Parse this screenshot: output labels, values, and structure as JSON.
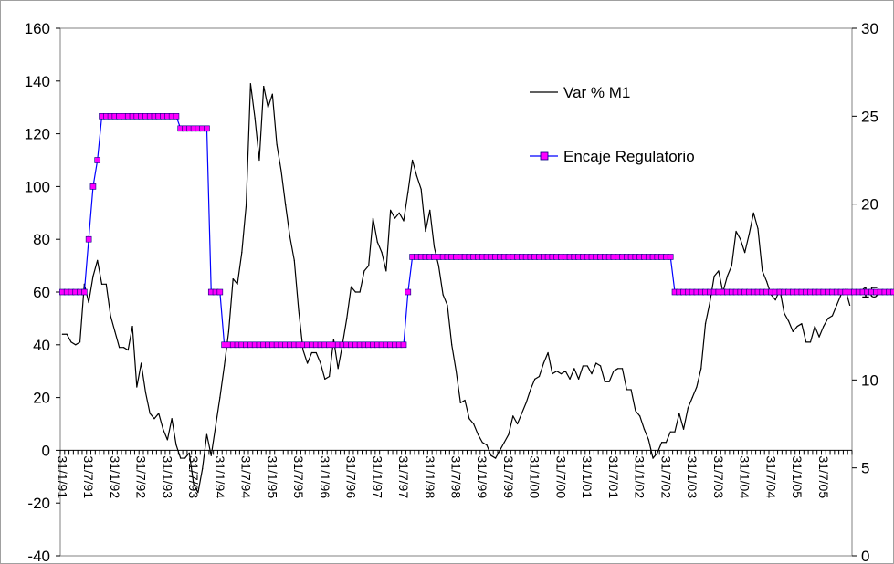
{
  "chart_data": {
    "type": "line",
    "title": "",
    "xlabel": "",
    "ylabel": "",
    "grid": false,
    "legend_position": "top-right",
    "x_ticks": [
      "31/1/91",
      "31/7/91",
      "31/1/92",
      "31/7/92",
      "31/1/93",
      "31/7/93",
      "31/1/94",
      "31/7/94",
      "31/1/95",
      "31/7/95",
      "31/1/96",
      "31/7/96",
      "31/1/97",
      "31/7/97",
      "31/1/98",
      "31/7/98",
      "31/1/99",
      "31/7/99",
      "31/1/00",
      "31/7/00",
      "31/1/01",
      "31/7/01",
      "31/1/02",
      "31/7/02",
      "31/1/03",
      "31/7/03",
      "31/1/04",
      "31/7/04",
      "31/1/05",
      "31/7/05"
    ],
    "y_left": {
      "min": -40,
      "max": 160,
      "ticks": [
        "-40",
        "-20",
        "0",
        "20",
        "40",
        "60",
        "80",
        "100",
        "120",
        "140",
        "160"
      ]
    },
    "y_right": {
      "min": 0,
      "max": 30,
      "ticks": [
        "0",
        "5",
        "10",
        "15",
        "20",
        "25",
        "30"
      ]
    },
    "series": [
      {
        "name": "Var % M1",
        "axis": "left",
        "color": "#000000",
        "style": "line",
        "values": [
          44,
          44,
          41,
          40,
          41,
          63,
          56,
          66,
          72,
          63,
          63,
          51,
          45,
          39,
          39,
          38,
          47,
          24,
          33,
          22,
          14,
          12,
          14,
          8,
          4,
          12,
          2,
          -3,
          -3,
          -1,
          -13,
          -16,
          -7,
          6,
          -2,
          9,
          20,
          32,
          45,
          65,
          63,
          75,
          93,
          139,
          126,
          110,
          138,
          130,
          135,
          116,
          106,
          93,
          81,
          72,
          53,
          38,
          33,
          37,
          37,
          33,
          27,
          28,
          42,
          31,
          40,
          50,
          62,
          60,
          60,
          68,
          70,
          88,
          79,
          75,
          68,
          91,
          88,
          90,
          87,
          98,
          110,
          104,
          99,
          83,
          91,
          77,
          70,
          59,
          55,
          40,
          30,
          18,
          19,
          12,
          10,
          6,
          3,
          2,
          -2,
          -3,
          0,
          3,
          6,
          13,
          10,
          14,
          18,
          23,
          27,
          28,
          33,
          37,
          29,
          30,
          29,
          30,
          27,
          31,
          27,
          32,
          32,
          29,
          33,
          32,
          26,
          26,
          30,
          31,
          31,
          23,
          23,
          15,
          13,
          8,
          4,
          -3,
          -1,
          3,
          3,
          7,
          7,
          14,
          8,
          16,
          20,
          24,
          31,
          48,
          56,
          66,
          68,
          60,
          66,
          70,
          83,
          80,
          75,
          82,
          90,
          84,
          68,
          64,
          59,
          57,
          61,
          52,
          49,
          45,
          47,
          48,
          41,
          41,
          47,
          43,
          47,
          50,
          51,
          55,
          59,
          61,
          55
        ]
      },
      {
        "name": "Encaje Regulatorio",
        "axis": "right",
        "color": "#0000ff",
        "marker_color": "#ff00ff",
        "style": "line-square-markers",
        "values": [
          15,
          15,
          15,
          15,
          15,
          15,
          18,
          21,
          22.5,
          25,
          25,
          25,
          25,
          25,
          25,
          25,
          25,
          25,
          25,
          25,
          25,
          25,
          25,
          25,
          25,
          25,
          25,
          24.3,
          24.3,
          24.3,
          24.3,
          24.3,
          24.3,
          24.3,
          15,
          15,
          15,
          12,
          12,
          12,
          12,
          12,
          12,
          12,
          12,
          12,
          12,
          12,
          12,
          12,
          12,
          12,
          12,
          12,
          12,
          12,
          12,
          12,
          12,
          12,
          12,
          12,
          12,
          12,
          12,
          12,
          12,
          12,
          12,
          12,
          12,
          12,
          12,
          12,
          12,
          12,
          12,
          12,
          12,
          15,
          17,
          17,
          17,
          17,
          17,
          17,
          17,
          17,
          17,
          17,
          17,
          17,
          17,
          17,
          17,
          17,
          17,
          17,
          17,
          17,
          17,
          17,
          17,
          17,
          17,
          17,
          17,
          17,
          17,
          17,
          17,
          17,
          17,
          17,
          17,
          17,
          17,
          17,
          17,
          17,
          17,
          17,
          17,
          17,
          17,
          17,
          17,
          17,
          17,
          17,
          17,
          17,
          17,
          17,
          17,
          17,
          17,
          17,
          17,
          17,
          15,
          15,
          15,
          15,
          15,
          15,
          15,
          15,
          15,
          15,
          15,
          15,
          15,
          15,
          15,
          15,
          15,
          15,
          15,
          15,
          15,
          15,
          15,
          15,
          15,
          15,
          15,
          15,
          15,
          15,
          15,
          15,
          15,
          15,
          15,
          15,
          15,
          15,
          15,
          15,
          15,
          15,
          15,
          15,
          15,
          15,
          15,
          15,
          15,
          15,
          15
        ]
      }
    ]
  }
}
